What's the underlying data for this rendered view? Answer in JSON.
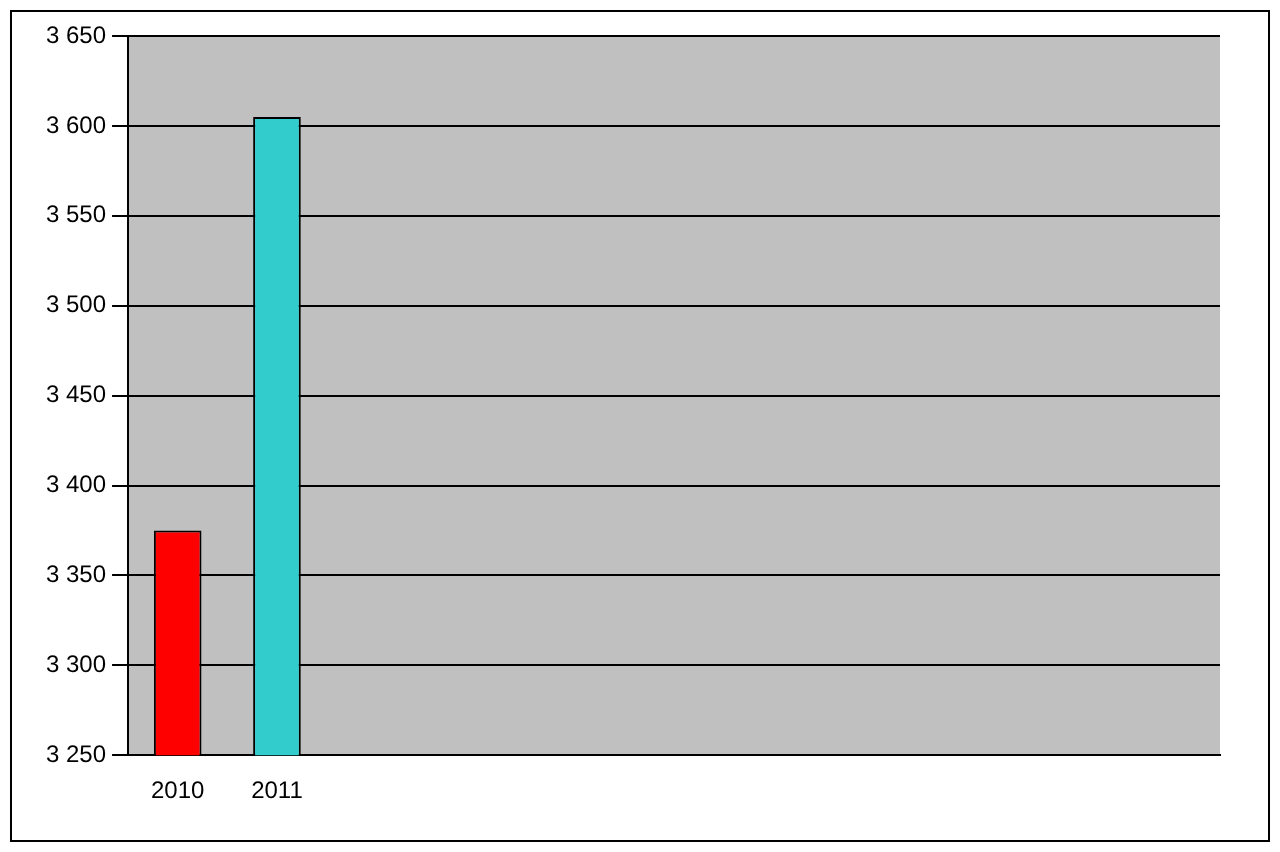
{
  "chart_data": {
    "type": "bar",
    "categories": [
      "2010",
      "2011",
      null,
      null,
      null,
      null,
      null,
      null,
      null,
      null,
      null
    ],
    "values": [
      3375,
      3605,
      null,
      null,
      null,
      null,
      null,
      null,
      null,
      null,
      null
    ],
    "colors": [
      "#ff0000",
      "#33cccc",
      null,
      null,
      null,
      null,
      null,
      null,
      null,
      null,
      null
    ],
    "ylim": [
      3250,
      3650
    ],
    "yticks": [
      {
        "value": 3250,
        "label": "3 250"
      },
      {
        "value": 3300,
        "label": "3 300"
      },
      {
        "value": 3350,
        "label": "3 350"
      },
      {
        "value": 3400,
        "label": "3 400"
      },
      {
        "value": 3450,
        "label": "3 450"
      },
      {
        "value": 3500,
        "label": "3 500"
      },
      {
        "value": 3550,
        "label": "3 550"
      },
      {
        "value": 3600,
        "label": "3 600"
      },
      {
        "value": 3650,
        "label": "3 650"
      }
    ],
    "grid": "y",
    "legend": false
  }
}
